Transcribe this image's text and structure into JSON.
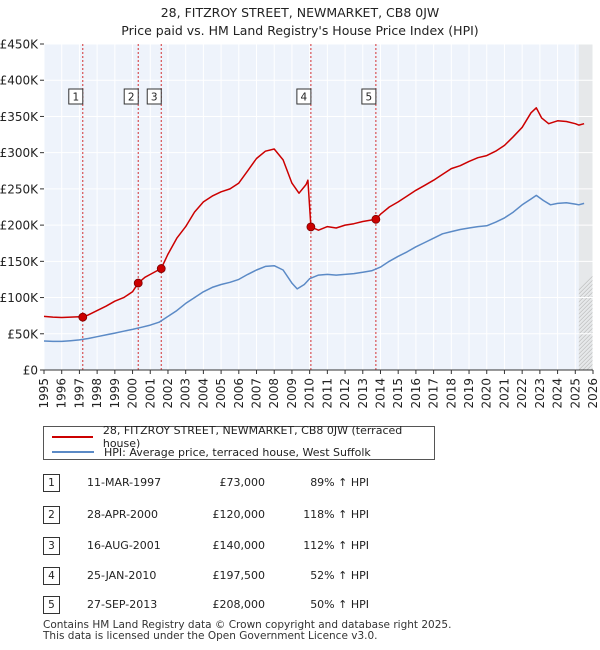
{
  "title_lines": [
    "28, FITZROY STREET, NEWMARKET, CB8 0JW",
    "Price paid vs. HM Land Registry's House Price Index (HPI)"
  ],
  "chart_data": {
    "type": "line",
    "title": "28, FITZROY STREET, NEWMARKET, CB8 0JW — Price paid vs. HM Land Registry's House Price Index (HPI)",
    "xlabel": "",
    "ylabel": "",
    "xlim": [
      1995,
      2026
    ],
    "ylim": [
      0,
      450000
    ],
    "x_ticks": [
      1995,
      1996,
      1997,
      1998,
      1999,
      2000,
      2001,
      2002,
      2003,
      2004,
      2005,
      2006,
      2007,
      2008,
      2009,
      2010,
      2011,
      2012,
      2013,
      2014,
      2015,
      2016,
      2017,
      2018,
      2019,
      2020,
      2021,
      2022,
      2023,
      2024,
      2025,
      2026
    ],
    "y_ticks": [
      {
        "value": 0,
        "label": "£0"
      },
      {
        "value": 50000,
        "label": "£50K"
      },
      {
        "value": 100000,
        "label": "£100K"
      },
      {
        "value": 150000,
        "label": "£150K"
      },
      {
        "value": 200000,
        "label": "£200K"
      },
      {
        "value": 250000,
        "label": "£250K"
      },
      {
        "value": 300000,
        "label": "£300K"
      },
      {
        "value": 350000,
        "label": "£350K"
      },
      {
        "value": 400000,
        "label": "£400K"
      },
      {
        "value": 450000,
        "label": "£450K"
      }
    ],
    "grid": true,
    "forecast_shade_from": 2025.2,
    "series": [
      {
        "name": "28, FITZROY STREET, NEWMARKET, CB8 0JW (terraced house)",
        "color": "#cc0000",
        "points": [
          [
            1995.0,
            74000
          ],
          [
            1995.5,
            73000
          ],
          [
            1996.0,
            72500
          ],
          [
            1996.5,
            73000
          ],
          [
            1997.0,
            73500
          ],
          [
            1997.19,
            73000
          ],
          [
            1997.5,
            76000
          ],
          [
            1998.0,
            82000
          ],
          [
            1998.5,
            88000
          ],
          [
            1999.0,
            95000
          ],
          [
            1999.5,
            100000
          ],
          [
            2000.0,
            108000
          ],
          [
            2000.32,
            120000
          ],
          [
            2000.7,
            128000
          ],
          [
            2001.0,
            132000
          ],
          [
            2001.3,
            136000
          ],
          [
            2001.62,
            140000
          ],
          [
            2002.0,
            160000
          ],
          [
            2002.5,
            182000
          ],
          [
            2003.0,
            198000
          ],
          [
            2003.5,
            218000
          ],
          [
            2004.0,
            232000
          ],
          [
            2004.5,
            240000
          ],
          [
            2005.0,
            246000
          ],
          [
            2005.5,
            250000
          ],
          [
            2006.0,
            258000
          ],
          [
            2006.5,
            275000
          ],
          [
            2007.0,
            292000
          ],
          [
            2007.5,
            302000
          ],
          [
            2008.0,
            305000
          ],
          [
            2008.5,
            290000
          ],
          [
            2009.0,
            258000
          ],
          [
            2009.4,
            244000
          ],
          [
            2009.8,
            256000
          ],
          [
            2009.9,
            262000
          ],
          [
            2010.07,
            197500
          ],
          [
            2010.5,
            193000
          ],
          [
            2011.0,
            198000
          ],
          [
            2011.5,
            196000
          ],
          [
            2012.0,
            200000
          ],
          [
            2012.5,
            202000
          ],
          [
            2013.0,
            205000
          ],
          [
            2013.74,
            208000
          ],
          [
            2014.0,
            215000
          ],
          [
            2014.5,
            225000
          ],
          [
            2015.0,
            232000
          ],
          [
            2015.5,
            240000
          ],
          [
            2016.0,
            248000
          ],
          [
            2016.5,
            255000
          ],
          [
            2017.0,
            262000
          ],
          [
            2017.5,
            270000
          ],
          [
            2018.0,
            278000
          ],
          [
            2018.5,
            282000
          ],
          [
            2019.0,
            288000
          ],
          [
            2019.5,
            293000
          ],
          [
            2020.0,
            296000
          ],
          [
            2020.5,
            302000
          ],
          [
            2021.0,
            310000
          ],
          [
            2021.5,
            322000
          ],
          [
            2022.0,
            335000
          ],
          [
            2022.5,
            355000
          ],
          [
            2022.8,
            362000
          ],
          [
            2023.1,
            348000
          ],
          [
            2023.5,
            340000
          ],
          [
            2024.0,
            344000
          ],
          [
            2024.5,
            343000
          ],
          [
            2025.0,
            340000
          ],
          [
            2025.2,
            338000
          ],
          [
            2025.5,
            340000
          ]
        ]
      },
      {
        "name": "HPI: Average price, terraced house, West Suffolk",
        "color": "#5b8ac6",
        "points": [
          [
            1995.0,
            40000
          ],
          [
            1995.5,
            39500
          ],
          [
            1996.0,
            39500
          ],
          [
            1996.5,
            40500
          ],
          [
            1997.0,
            41500
          ],
          [
            1997.5,
            43500
          ],
          [
            1998.0,
            46000
          ],
          [
            1998.5,
            48500
          ],
          [
            1999.0,
            51000
          ],
          [
            1999.5,
            53500
          ],
          [
            2000.0,
            56000
          ],
          [
            2000.5,
            59000
          ],
          [
            2001.0,
            62000
          ],
          [
            2001.5,
            66000
          ],
          [
            2002.0,
            74000
          ],
          [
            2002.5,
            82000
          ],
          [
            2003.0,
            92000
          ],
          [
            2003.5,
            100000
          ],
          [
            2004.0,
            108000
          ],
          [
            2004.5,
            114000
          ],
          [
            2005.0,
            118000
          ],
          [
            2005.5,
            121000
          ],
          [
            2006.0,
            125000
          ],
          [
            2006.5,
            132000
          ],
          [
            2007.0,
            138000
          ],
          [
            2007.5,
            143000
          ],
          [
            2008.0,
            144000
          ],
          [
            2008.5,
            138000
          ],
          [
            2009.0,
            120000
          ],
          [
            2009.3,
            112000
          ],
          [
            2009.7,
            118000
          ],
          [
            2010.0,
            126000
          ],
          [
            2010.5,
            131000
          ],
          [
            2011.0,
            132000
          ],
          [
            2011.5,
            131000
          ],
          [
            2012.0,
            132000
          ],
          [
            2012.5,
            133000
          ],
          [
            2013.0,
            135000
          ],
          [
            2013.5,
            137000
          ],
          [
            2014.0,
            142000
          ],
          [
            2014.5,
            150000
          ],
          [
            2015.0,
            157000
          ],
          [
            2015.5,
            163000
          ],
          [
            2016.0,
            170000
          ],
          [
            2016.5,
            176000
          ],
          [
            2017.0,
            182000
          ],
          [
            2017.5,
            188000
          ],
          [
            2018.0,
            191000
          ],
          [
            2018.5,
            194000
          ],
          [
            2019.0,
            196000
          ],
          [
            2019.5,
            198000
          ],
          [
            2020.0,
            199000
          ],
          [
            2020.5,
            204000
          ],
          [
            2021.0,
            210000
          ],
          [
            2021.5,
            218000
          ],
          [
            2022.0,
            228000
          ],
          [
            2022.5,
            236000
          ],
          [
            2022.8,
            241000
          ],
          [
            2023.2,
            234000
          ],
          [
            2023.6,
            228000
          ],
          [
            2024.0,
            230000
          ],
          [
            2024.5,
            231000
          ],
          [
            2025.0,
            229000
          ],
          [
            2025.2,
            228000
          ],
          [
            2025.5,
            230000
          ]
        ]
      }
    ],
    "sales": [
      {
        "num": "1",
        "x": 1997.19,
        "price": 73000
      },
      {
        "num": "2",
        "x": 2000.32,
        "price": 120000
      },
      {
        "num": "3",
        "x": 2001.62,
        "price": 140000
      },
      {
        "num": "4",
        "x": 2010.07,
        "price": 197500
      },
      {
        "num": "5",
        "x": 2013.74,
        "price": 208000
      }
    ]
  },
  "legend": {
    "property_label": "28, FITZROY STREET, NEWMARKET, CB8 0JW (terraced house)",
    "hpi_label": "HPI: Average price, terraced house, West Suffolk"
  },
  "table": [
    {
      "num": "1",
      "date": "11-MAR-1997",
      "price": "£73,000",
      "hpi": "89% ↑ HPI"
    },
    {
      "num": "2",
      "date": "28-APR-2000",
      "price": "£120,000",
      "hpi": "118% ↑ HPI"
    },
    {
      "num": "3",
      "date": "16-AUG-2001",
      "price": "£140,000",
      "hpi": "112% ↑ HPI"
    },
    {
      "num": "4",
      "date": "25-JAN-2010",
      "price": "£197,500",
      "hpi": "52% ↑ HPI"
    },
    {
      "num": "5",
      "date": "27-SEP-2013",
      "price": "£208,000",
      "hpi": "50% ↑ HPI"
    }
  ],
  "footer": [
    "Contains HM Land Registry data © Crown copyright and database right 2025.",
    "This data is licensed under the Open Government Licence v3.0."
  ],
  "colors": {
    "property": "#cc0000",
    "hpi": "#5b8ac6",
    "plot_bg": "#eef3fb",
    "grid": "#ffffff",
    "marker_line": "#cc0000"
  }
}
